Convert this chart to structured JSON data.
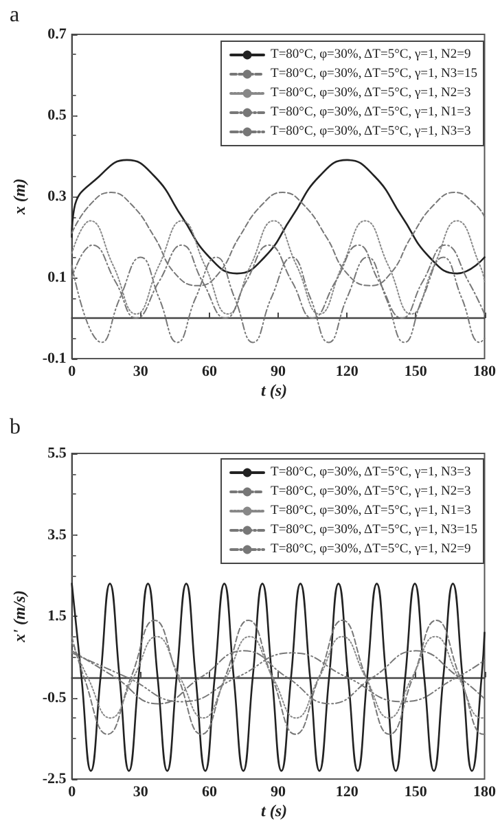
{
  "chart_data": [
    {
      "type": "line",
      "title": "a",
      "xlabel": "t (s)",
      "ylabel": "x (m)",
      "xlim": [
        0,
        180
      ],
      "xticks": [
        0,
        30,
        60,
        90,
        120,
        150,
        180
      ],
      "ylim": [
        -0.1,
        0.7
      ],
      "yticks": [
        -0.1,
        0.1,
        0.3,
        0.5,
        0.7
      ],
      "grid": false,
      "legend": "top right",
      "marker": "none",
      "series": [
        {
          "name": "T=80°C, φ=30%, ΔT=5°C, γ=1, N2=9",
          "color": "#222222",
          "line_style": "solid",
          "x": [
            0,
            1,
            12,
            24,
            36,
            48,
            60,
            72,
            84,
            96,
            108,
            120,
            132,
            144,
            156,
            168,
            180
          ],
          "values": [
            0.2,
            0.27,
            0.35,
            0.39,
            0.35,
            0.25,
            0.15,
            0.11,
            0.15,
            0.25,
            0.35,
            0.39,
            0.35,
            0.25,
            0.15,
            0.11,
            0.15
          ]
        },
        {
          "name": "T=80°C, φ=30%, ΔT=5°C, γ=1, N3=15",
          "color": "#777777",
          "line_style": "dashed",
          "x": [
            0,
            8,
            17,
            26,
            36,
            45,
            55,
            64,
            73,
            83,
            92,
            101,
            111,
            120,
            130,
            139,
            148,
            158,
            167,
            176,
            180
          ],
          "values": [
            0.21,
            0.28,
            0.31,
            0.28,
            0.2,
            0.11,
            0.08,
            0.11,
            0.2,
            0.28,
            0.31,
            0.28,
            0.2,
            0.11,
            0.08,
            0.11,
            0.2,
            0.28,
            0.31,
            0.28,
            0.25
          ]
        },
        {
          "name": "T=80°C, φ=30%, ΔT=5°C, γ=1, N2=3",
          "color": "#888888",
          "line_style": "dotted",
          "x": [
            0,
            8,
            18,
            28,
            38,
            48,
            58,
            68,
            78,
            88,
            98,
            108,
            118,
            128,
            138,
            148,
            158,
            168,
            178,
            180
          ],
          "values": [
            0.16,
            0.24,
            0.13,
            0.01,
            0.13,
            0.24,
            0.13,
            0.01,
            0.13,
            0.24,
            0.13,
            0.01,
            0.13,
            0.24,
            0.13,
            0.01,
            0.13,
            0.24,
            0.13,
            0.09
          ]
        },
        {
          "name": "T=80°C, φ=30%, ΔT=5°C, γ=1, N1=3",
          "color": "#777777",
          "line_style": "dashdot",
          "x": [
            0,
            9,
            19,
            28,
            38,
            48,
            57,
            67,
            76,
            86,
            96,
            105,
            115,
            125,
            134,
            144,
            153,
            163,
            173,
            180
          ],
          "values": [
            0.1,
            0.18,
            0.09,
            0,
            0.09,
            0.18,
            0.09,
            0,
            0.09,
            0.18,
            0.09,
            0,
            0.09,
            0.18,
            0.09,
            0,
            0.09,
            0.18,
            0.09,
            0.01
          ]
        },
        {
          "name": "T=80°C, φ=30%, ΔT=5°C, γ=1, N3=3",
          "color": "#777777",
          "line_style": "dashdotdot",
          "x": [
            0,
            13,
            21,
            30,
            38,
            46,
            54,
            63,
            71,
            79,
            87,
            96,
            104,
            112,
            120,
            129,
            137,
            145,
            153,
            162,
            170,
            178,
            180
          ],
          "values": [
            0.13,
            -0.06,
            0.05,
            0.15,
            0.05,
            -0.06,
            0.05,
            0.15,
            0.05,
            -0.06,
            0.05,
            0.15,
            0.05,
            -0.06,
            0.05,
            0.15,
            0.05,
            -0.06,
            0.05,
            0.15,
            0.05,
            -0.06,
            -0.05
          ]
        }
      ]
    },
    {
      "type": "line",
      "title": "b",
      "xlabel": "t (s)",
      "ylabel": "x' (m/s)",
      "xlim": [
        0,
        180
      ],
      "xticks": [
        0,
        30,
        60,
        90,
        120,
        150,
        180
      ],
      "ylim": [
        -2.5,
        5.5
      ],
      "yticks": [
        -2.5,
        -0.5,
        1.5,
        3.5,
        5.5
      ],
      "grid": false,
      "legend": "top right",
      "marker": "none",
      "series": [
        {
          "name": "T=80°C, φ=30%, ΔT=5°C, γ=1, N3=3",
          "color": "#222222",
          "line_style": "solid",
          "x": [
            0,
            4.2,
            8.3,
            12.5,
            16.6,
            20.8,
            24.9,
            29.1,
            33.2,
            37.4,
            41.6,
            45.7,
            49.9,
            54,
            58.2,
            62.3,
            66.5,
            70.6,
            74.8,
            78.9,
            83.1,
            87.3,
            91.4,
            95.6,
            99.7,
            103.9,
            108,
            112.2,
            116.3,
            120.5,
            124.7,
            128.8,
            133,
            137.1,
            141.3,
            145.4,
            149.6,
            153.7,
            157.9,
            162,
            166.2,
            170.4,
            174.5,
            178.7,
            180
          ],
          "values": [
            2.3,
            0,
            -2.3,
            0,
            2.3,
            0,
            -2.3,
            0,
            2.3,
            0,
            -2.3,
            0,
            2.3,
            0,
            -2.3,
            0,
            2.3,
            0,
            -2.3,
            0,
            2.3,
            0,
            -2.3,
            0,
            2.3,
            0,
            -2.3,
            0,
            2.3,
            0,
            -2.3,
            0,
            2.3,
            0,
            -2.3,
            0,
            2.3,
            0,
            -2.3,
            0,
            2.3,
            0,
            -2.3,
            0,
            1.1
          ]
        },
        {
          "name": "T=80°C, φ=30%, ΔT=5°C, γ=1, N2=3",
          "color": "#777777",
          "line_style": "dashed",
          "x": [
            0,
            5.3,
            15.5,
            25.8,
            36,
            46.3,
            56.5,
            66.8,
            77,
            87.3,
            97.5,
            107.8,
            118,
            128.3,
            138.5,
            148.8,
            159,
            169.3,
            179.5,
            180
          ],
          "values": [
            1,
            0,
            -1.4,
            0,
            1.4,
            0,
            -1.4,
            0,
            1.4,
            0,
            -1.4,
            0,
            1.4,
            0,
            -1.4,
            0,
            1.4,
            0,
            -1.4,
            -1.4
          ]
        },
        {
          "name": "T=80°C, φ=30%, ΔT=5°C, γ=1, N1=3",
          "color": "#888888",
          "line_style": "dotted",
          "x": [
            0,
            6.9,
            16.8,
            26.9,
            37,
            47.1,
            57.3,
            67.4,
            77.5,
            87.6,
            97.8,
            107.9,
            118,
            128.1,
            138.3,
            148.4,
            158.5,
            168.6,
            178.8,
            180
          ],
          "values": [
            0.86,
            0,
            -1,
            0,
            1,
            0,
            -1,
            0,
            1,
            0,
            -1,
            0,
            1,
            0,
            -1,
            0,
            1,
            0,
            -1,
            -0.99
          ]
        },
        {
          "name": "T=80°C, φ=30%, ΔT=5°C, γ=1, N3=15",
          "color": "#777777",
          "line_style": "dashdot",
          "x": [
            0,
            18.8,
            37.5,
            56.3,
            75,
            93.8,
            112.5,
            131.3,
            150,
            168.8,
            180
          ],
          "values": [
            0.65,
            0,
            -0.65,
            0,
            0.65,
            0,
            -0.65,
            0,
            0.65,
            0,
            -0.53
          ]
        },
        {
          "name": "T=80°C, φ=30%, ΔT=5°C, γ=1, N2=9",
          "color": "#777777",
          "line_style": "dashdotdot",
          "x": [
            0,
            24,
            48,
            72,
            96,
            120,
            144,
            168,
            180
          ],
          "values": [
            0.6,
            0,
            -0.6,
            0,
            0.6,
            0,
            -0.6,
            0,
            0.42
          ]
        }
      ]
    }
  ]
}
